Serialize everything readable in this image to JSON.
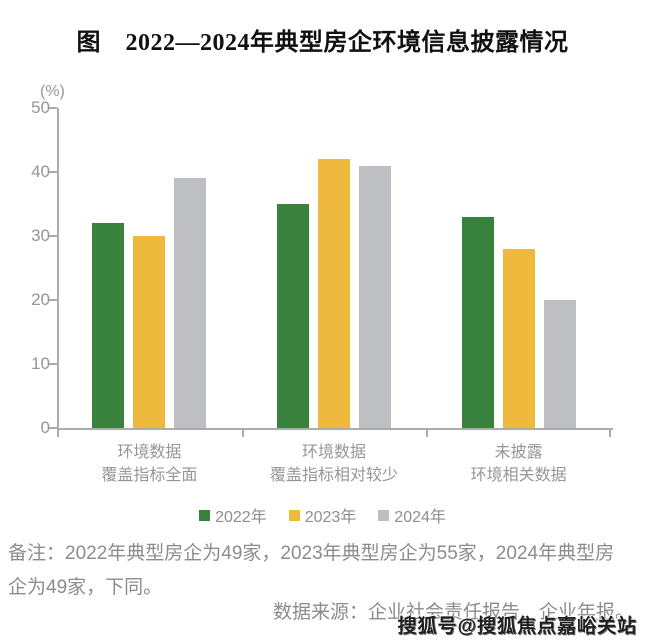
{
  "title": "图　2022—2024年典型房企环境信息披露情况",
  "chart_data": {
    "type": "bar",
    "title": "图　2022—2024年典型房企环境信息披露情况",
    "unit_label": "(%)",
    "categories": [
      {
        "lines": [
          "环境数据",
          "覆盖指标全面"
        ]
      },
      {
        "lines": [
          "环境数据",
          "覆盖指标相对较少"
        ]
      },
      {
        "lines": [
          "未披露",
          "环境相关数据"
        ]
      }
    ],
    "series": [
      {
        "name": "2022年",
        "color": "#38823E",
        "values": [
          32,
          35,
          33
        ]
      },
      {
        "name": "2023年",
        "color": "#EEB93C",
        "values": [
          30,
          42,
          28
        ]
      },
      {
        "name": "2024年",
        "color": "#BEBFC3",
        "values": [
          39,
          41,
          20
        ]
      }
    ],
    "ylim": [
      0,
      50
    ],
    "yticks": [
      0,
      10,
      20,
      30,
      40,
      50
    ],
    "grid": false,
    "legend_position": "bottom",
    "axis_color": "#acacac",
    "label_color": "#969696"
  },
  "note": {
    "text": "备注：2022年典型房企为49家，2023年典型房企为55家，2024年典型房企为49家，下同。"
  },
  "source": {
    "text": "数据来源：企业社会责任报告、企业年报。"
  },
  "watermark": {
    "text": "搜狐号@搜狐焦点嘉峪关站"
  }
}
